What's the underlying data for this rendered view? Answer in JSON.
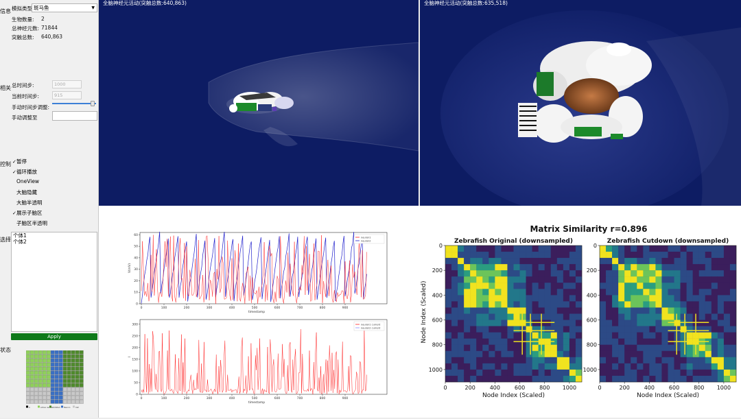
{
  "sidebar": {
    "info_section": "信息",
    "sim_type_label": "模拟类型:",
    "sim_type_value": "斑马鱼",
    "org_count_label": "生物数量:",
    "org_count_value": "2",
    "neuron_total_label": "总神经元数:",
    "neuron_total_value": "71844",
    "synapse_total_label": "突触总数:",
    "synapse_total_value": "640,863",
    "related_section": "相关",
    "total_steps_label": "总时间步:",
    "total_steps_value": "1000",
    "current_step_label": "当前时间步:",
    "current_step_value": "915",
    "manual_adjust_label": "手动时间步调整:",
    "manual_set_label": "手动调整至",
    "control_section": "控制",
    "checks": [
      {
        "label": "暂停",
        "checked": true
      },
      {
        "label": "循环播放",
        "checked": true
      },
      {
        "label": "OneView",
        "checked": false
      },
      {
        "label": "大脑隐藏",
        "checked": false
      },
      {
        "label": "大脑半透明",
        "checked": false
      },
      {
        "label": "展示子脑区",
        "checked": true
      },
      {
        "label": "子脑区半透明",
        "checked": false
      }
    ],
    "select_section": "选择",
    "individuals": [
      "个体1",
      "个体2"
    ],
    "apply_label": "Apply",
    "status_section": "状态"
  },
  "views": {
    "left_title": "全脑神经元活动(突触总数:640,863)",
    "right_title": "全脑神经元活动(突触总数:635,518)"
  },
  "chart_data": [
    {
      "type": "line",
      "ylabel": "V(mV)",
      "xlabel": "timestamp",
      "x_ticks": [
        "0",
        "100",
        "200",
        "300",
        "400",
        "500",
        "600",
        "700",
        "800",
        "900"
      ],
      "y_ticks": [
        "0",
        "10",
        "20",
        "30",
        "40",
        "50",
        "60"
      ],
      "ylim": [
        0,
        62
      ],
      "legend": [
        "neuron1",
        "neuron2"
      ],
      "colors": [
        "#ff2020",
        "#2020cc"
      ]
    },
    {
      "type": "line",
      "ylabel": "I",
      "xlabel": "timestamp",
      "x_ticks": [
        "0",
        "100",
        "200",
        "300",
        "400",
        "500",
        "600",
        "700",
        "800",
        "900"
      ],
      "y_ticks": [
        "0",
        "50",
        "100",
        "150",
        "200",
        "250",
        "300"
      ],
      "ylim": [
        0,
        320
      ],
      "legend": [
        "neuron1 current",
        "neuron2 current"
      ],
      "colors": [
        "#ff2020",
        "#8888ff"
      ]
    }
  ],
  "matrix": {
    "title": "Matrix Similarity r=0.896",
    "left_title": "Zebrafish Original (downsampled)",
    "right_title": "Zebrafish Cutdown (downsampled)",
    "xlabel": "Node Index (Scaled)",
    "ylabel": "Node Index (Scaled)",
    "x_ticks": [
      "0",
      "200",
      "400",
      "600",
      "800",
      "1000"
    ],
    "y_ticks": [
      "0",
      "200",
      "400",
      "600",
      "800",
      "1000"
    ]
  },
  "status_legend": [
    "A",
    "Active neuron",
    "Inhibited",
    "Neuron",
    "Cell"
  ],
  "colors": {
    "view_bg": "#0d1c63",
    "apply_green": "#0f7a1a",
    "grid_light_green": "#8fd05a",
    "grid_dark_green": "#4f8a2c",
    "grid_blue": "#3a6fc4",
    "grid_gray": "#c8c8c8"
  }
}
